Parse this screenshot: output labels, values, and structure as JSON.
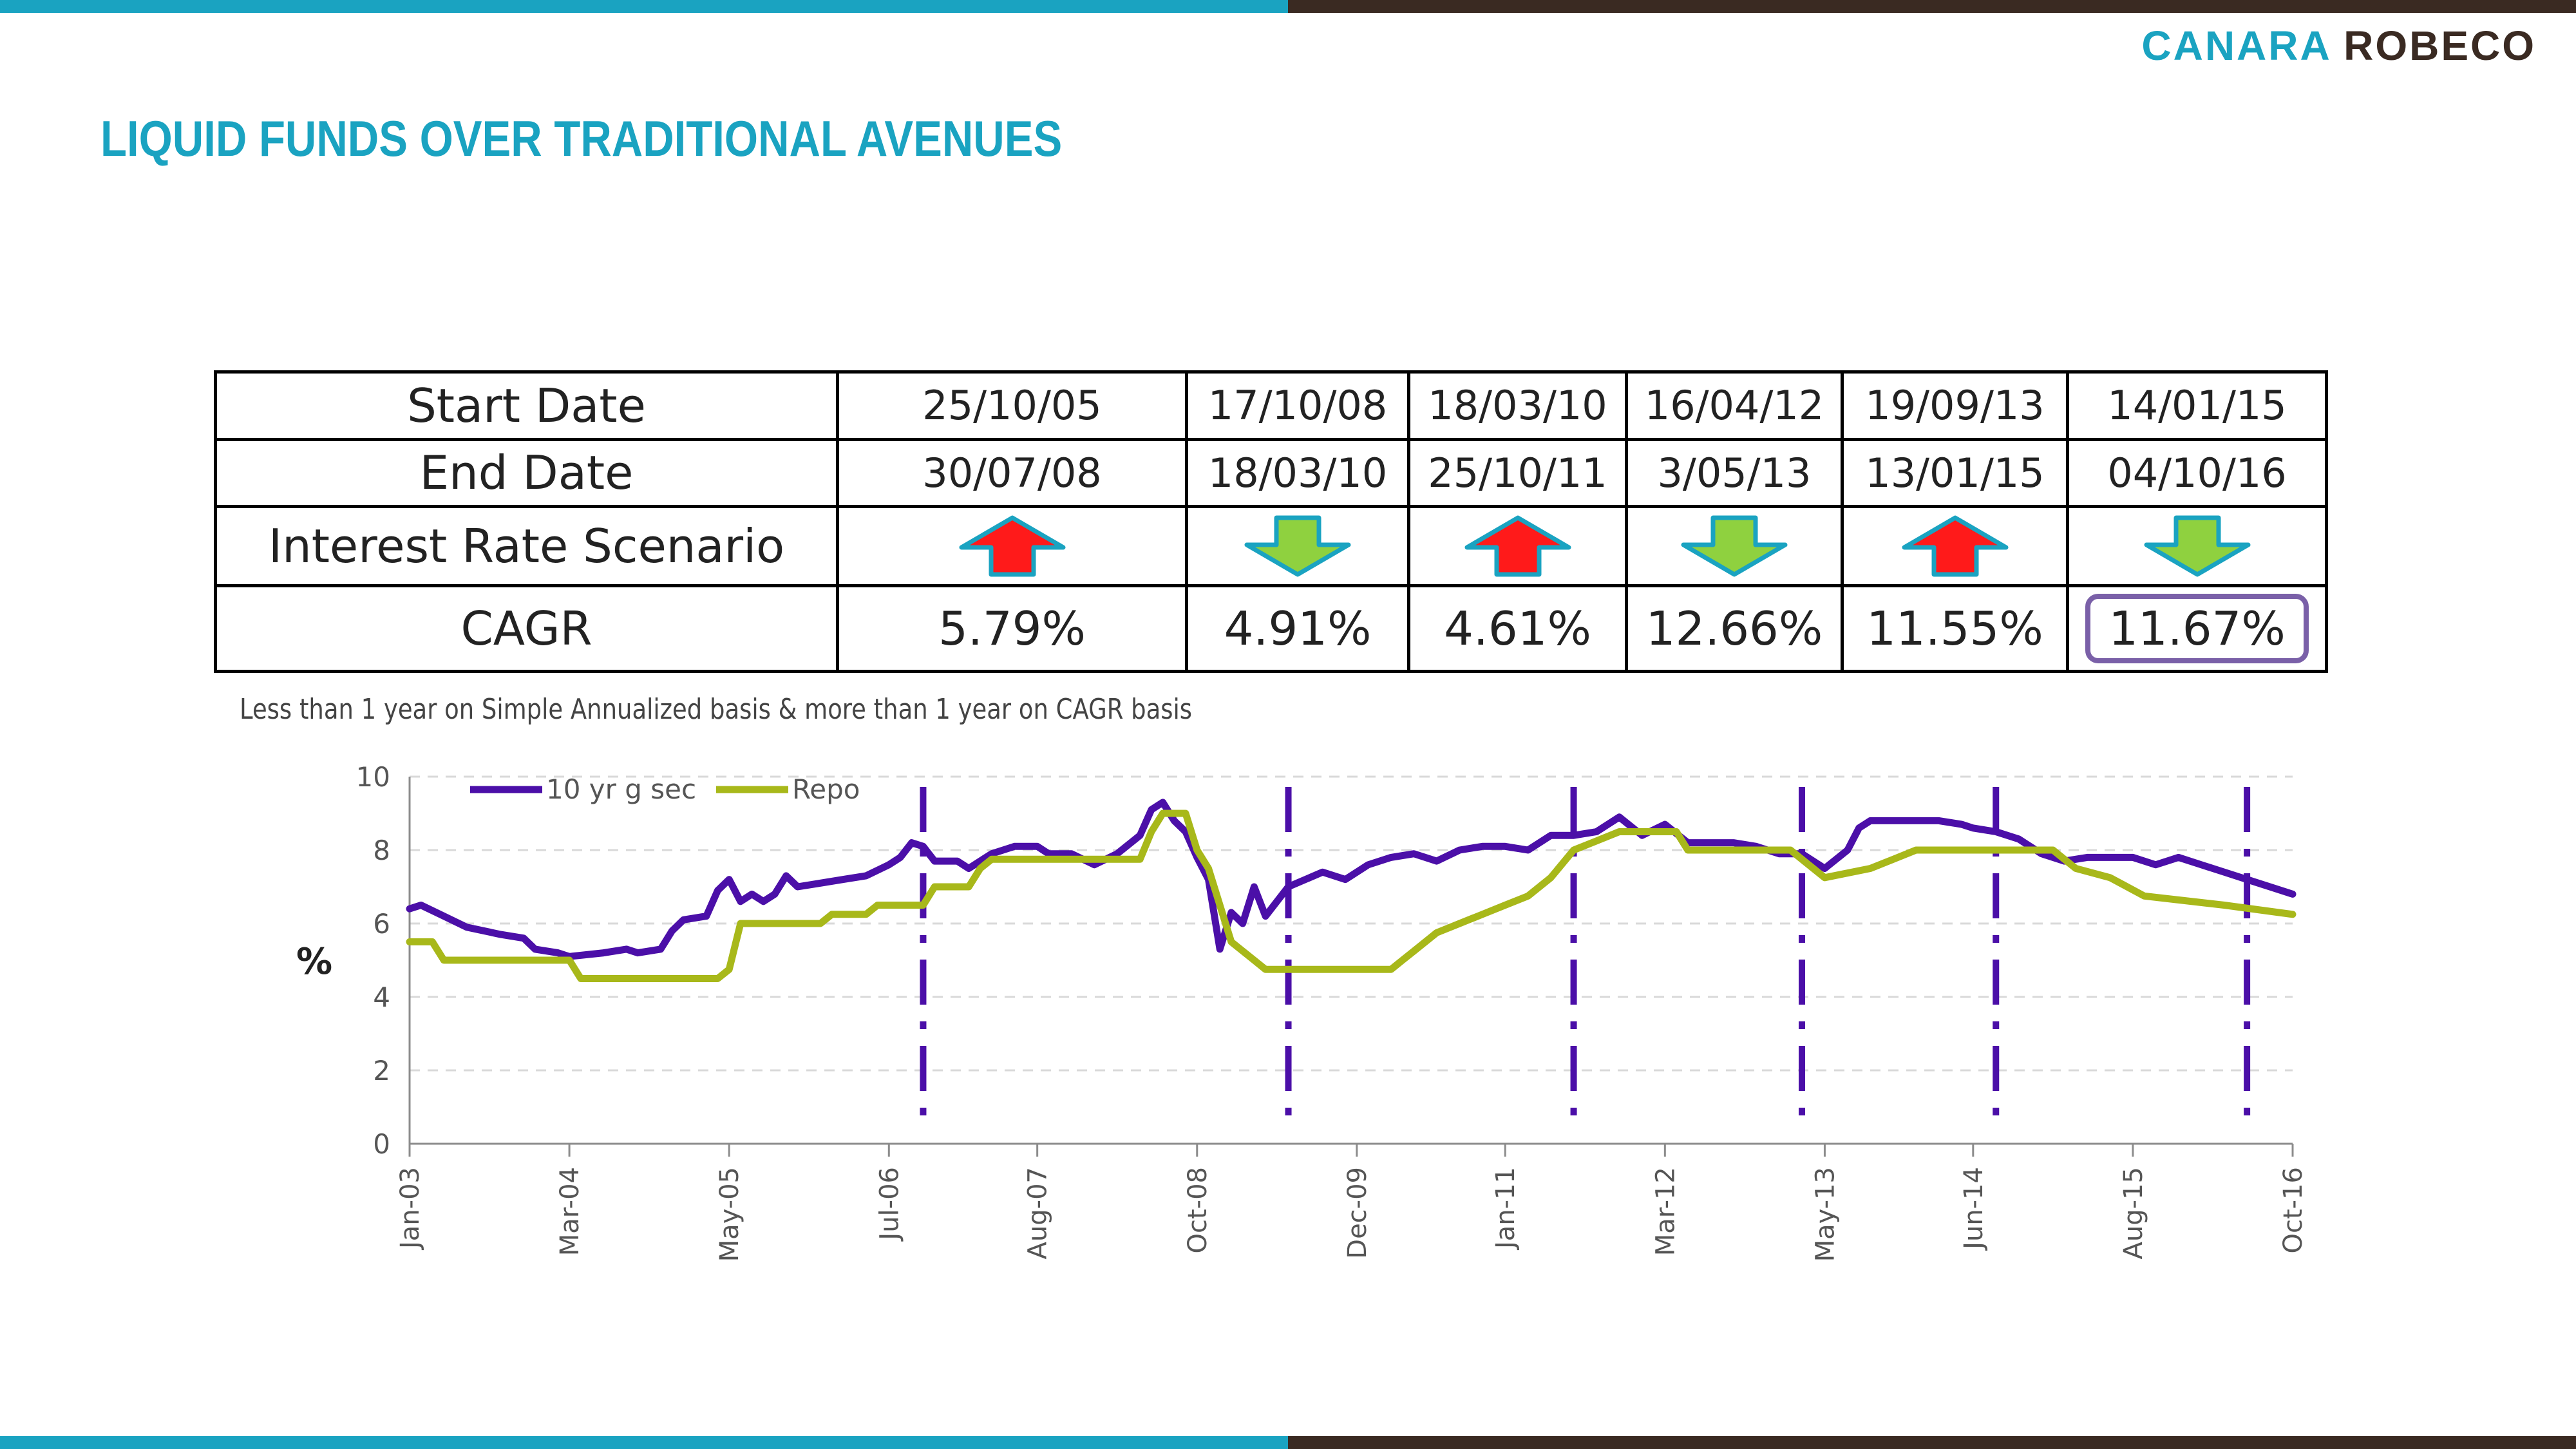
{
  "colors": {
    "accent": "#1aa3c1",
    "brand_brown": "#3a2a22",
    "series_gsec": "#4b0fa8",
    "series_repo": "#a8b81a",
    "up_arrow": "#ff1a1a",
    "down_arrow": "#8fd13f",
    "arrow_outline": "#1aa3c1"
  },
  "logo": {
    "part1": "CANARA",
    "part2": "ROBECO"
  },
  "page_title": "LIQUID FUNDS OVER TRADITIONAL AVENUES",
  "table": {
    "row_labels": {
      "start": "Start Date",
      "end": "End Date",
      "scenario": "Interest Rate Scenario",
      "cagr": "CAGR"
    },
    "periods": [
      {
        "start": "25/10/05",
        "end": "30/07/08",
        "direction": "up",
        "cagr": "5.79%",
        "highlighted": false
      },
      {
        "start": "17/10/08",
        "end": "18/03/10",
        "direction": "down",
        "cagr": "4.91%",
        "highlighted": false
      },
      {
        "start": "18/03/10",
        "end": "25/10/11",
        "direction": "up",
        "cagr": "4.61%",
        "highlighted": false
      },
      {
        "start": "16/04/12",
        "end": "3/05/13",
        "direction": "down",
        "cagr": "12.66%",
        "highlighted": false
      },
      {
        "start": "19/09/13",
        "end": "13/01/15",
        "direction": "up",
        "cagr": "11.55%",
        "highlighted": false
      },
      {
        "start": "14/01/15",
        "end": "04/10/16",
        "direction": "down",
        "cagr": "11.67%",
        "highlighted": true
      }
    ]
  },
  "note": "Less than 1 year on Simple Annualized basis & more than 1 year on CAGR basis",
  "chart_data": {
    "type": "line",
    "ylabel": "%",
    "ylim": [
      0,
      10
    ],
    "yticks": [
      0,
      2,
      4,
      6,
      8,
      10
    ],
    "xlim": [
      "2003-01",
      "2016-10"
    ],
    "xticks": [
      {
        "label": "Jan-03",
        "date": "2003-01"
      },
      {
        "label": "Mar-04",
        "date": "2004-03"
      },
      {
        "label": "May-05",
        "date": "2005-05"
      },
      {
        "label": "Jul-06",
        "date": "2006-07"
      },
      {
        "label": "Aug-07",
        "date": "2007-08"
      },
      {
        "label": "Oct-08",
        "date": "2008-10"
      },
      {
        "label": "Dec-09",
        "date": "2009-12"
      },
      {
        "label": "Jan-11",
        "date": "2011-01"
      },
      {
        "label": "Mar-12",
        "date": "2012-03"
      },
      {
        "label": "May-13",
        "date": "2013-05"
      },
      {
        "label": "Jun-14",
        "date": "2014-06"
      },
      {
        "label": "Aug-15",
        "date": "2015-08"
      },
      {
        "label": "Oct-16",
        "date": "2016-10"
      }
    ],
    "grid": "horizontal dashed",
    "legend": "top-left",
    "period_markers": [
      "2006-10",
      "2009-06",
      "2011-07",
      "2013-03",
      "2014-08",
      "2016-06"
    ],
    "series": [
      {
        "name": "10 yr g sec",
        "points": [
          [
            "2003-01",
            6.4
          ],
          [
            "2003-02",
            6.5
          ],
          [
            "2003-04",
            6.2
          ],
          [
            "2003-06",
            5.9
          ],
          [
            "2003-09",
            5.7
          ],
          [
            "2003-11",
            5.6
          ],
          [
            "2003-12",
            5.3
          ],
          [
            "2004-02",
            5.2
          ],
          [
            "2004-03",
            5.1
          ],
          [
            "2004-06",
            5.2
          ],
          [
            "2004-08",
            5.3
          ],
          [
            "2004-09",
            5.2
          ],
          [
            "2004-11",
            5.3
          ],
          [
            "2004-12",
            5.8
          ],
          [
            "2005-01",
            6.1
          ],
          [
            "2005-03",
            6.2
          ],
          [
            "2005-04",
            6.9
          ],
          [
            "2005-05",
            7.2
          ],
          [
            "2005-06",
            6.6
          ],
          [
            "2005-07",
            6.8
          ],
          [
            "2005-08",
            6.6
          ],
          [
            "2005-09",
            6.8
          ],
          [
            "2005-10",
            7.3
          ],
          [
            "2005-11",
            7.0
          ],
          [
            "2006-01",
            7.1
          ],
          [
            "2006-03",
            7.2
          ],
          [
            "2006-05",
            7.3
          ],
          [
            "2006-07",
            7.6
          ],
          [
            "2006-08",
            7.8
          ],
          [
            "2006-09",
            8.2
          ],
          [
            "2006-10",
            8.1
          ],
          [
            "2006-11",
            7.7
          ],
          [
            "2007-01",
            7.7
          ],
          [
            "2007-02",
            7.5
          ],
          [
            "2007-04",
            7.9
          ],
          [
            "2007-06",
            8.1
          ],
          [
            "2007-08",
            8.1
          ],
          [
            "2007-09",
            7.9
          ],
          [
            "2007-11",
            7.9
          ],
          [
            "2008-01",
            7.6
          ],
          [
            "2008-03",
            7.9
          ],
          [
            "2008-05",
            8.4
          ],
          [
            "2008-06",
            9.1
          ],
          [
            "2008-07",
            9.3
          ],
          [
            "2008-08",
            8.8
          ],
          [
            "2008-09",
            8.5
          ],
          [
            "2008-10",
            7.8
          ],
          [
            "2008-11",
            7.2
          ],
          [
            "2008-12",
            5.3
          ],
          [
            "2009-01",
            6.3
          ],
          [
            "2009-02",
            6.0
          ],
          [
            "2009-03",
            7.0
          ],
          [
            "2009-04",
            6.2
          ],
          [
            "2009-06",
            7.0
          ],
          [
            "2009-09",
            7.4
          ],
          [
            "2009-11",
            7.2
          ],
          [
            "2010-01",
            7.6
          ],
          [
            "2010-03",
            7.8
          ],
          [
            "2010-05",
            7.9
          ],
          [
            "2010-07",
            7.7
          ],
          [
            "2010-09",
            8.0
          ],
          [
            "2010-11",
            8.1
          ],
          [
            "2011-01",
            8.1
          ],
          [
            "2011-03",
            8.0
          ],
          [
            "2011-05",
            8.4
          ],
          [
            "2011-07",
            8.4
          ],
          [
            "2011-09",
            8.5
          ],
          [
            "2011-11",
            8.9
          ],
          [
            "2012-01",
            8.4
          ],
          [
            "2012-03",
            8.7
          ],
          [
            "2012-05",
            8.2
          ],
          [
            "2012-07",
            8.2
          ],
          [
            "2012-09",
            8.2
          ],
          [
            "2012-11",
            8.1
          ],
          [
            "2013-01",
            7.9
          ],
          [
            "2013-03",
            7.9
          ],
          [
            "2013-05",
            7.5
          ],
          [
            "2013-07",
            8.0
          ],
          [
            "2013-08",
            8.6
          ],
          [
            "2013-09",
            8.8
          ],
          [
            "2013-11",
            8.8
          ],
          [
            "2014-01",
            8.8
          ],
          [
            "2014-03",
            8.8
          ],
          [
            "2014-05",
            8.7
          ],
          [
            "2014-06",
            8.6
          ],
          [
            "2014-08",
            8.5
          ],
          [
            "2014-10",
            8.3
          ],
          [
            "2014-12",
            7.9
          ],
          [
            "2015-02",
            7.7
          ],
          [
            "2015-04",
            7.8
          ],
          [
            "2015-06",
            7.8
          ],
          [
            "2015-08",
            7.8
          ],
          [
            "2015-10",
            7.6
          ],
          [
            "2015-12",
            7.8
          ],
          [
            "2016-02",
            7.6
          ],
          [
            "2016-04",
            7.4
          ],
          [
            "2016-06",
            7.2
          ],
          [
            "2016-08",
            7.0
          ],
          [
            "2016-10",
            6.8
          ]
        ]
      },
      {
        "name": "Repo",
        "points": [
          [
            "2003-01",
            5.5
          ],
          [
            "2003-03",
            5.5
          ],
          [
            "2003-04",
            5.0
          ],
          [
            "2004-03",
            5.0
          ],
          [
            "2004-04",
            4.5
          ],
          [
            "2005-04",
            4.5
          ],
          [
            "2005-05",
            4.75
          ],
          [
            "2005-06",
            6.0
          ],
          [
            "2006-01",
            6.0
          ],
          [
            "2006-02",
            6.25
          ],
          [
            "2006-05",
            6.25
          ],
          [
            "2006-06",
            6.5
          ],
          [
            "2006-10",
            6.5
          ],
          [
            "2006-11",
            7.0
          ],
          [
            "2007-02",
            7.0
          ],
          [
            "2007-03",
            7.5
          ],
          [
            "2007-04",
            7.75
          ],
          [
            "2008-05",
            7.75
          ],
          [
            "2008-06",
            8.5
          ],
          [
            "2008-07",
            9.0
          ],
          [
            "2008-09",
            9.0
          ],
          [
            "2008-10",
            8.0
          ],
          [
            "2008-11",
            7.5
          ],
          [
            "2008-12",
            6.5
          ],
          [
            "2009-01",
            5.5
          ],
          [
            "2009-03",
            5.0
          ],
          [
            "2009-04",
            4.75
          ],
          [
            "2010-03",
            4.75
          ],
          [
            "2010-04",
            5.0
          ],
          [
            "2010-05",
            5.25
          ],
          [
            "2010-07",
            5.75
          ],
          [
            "2010-09",
            6.0
          ],
          [
            "2010-11",
            6.25
          ],
          [
            "2011-01",
            6.5
          ],
          [
            "2011-03",
            6.75
          ],
          [
            "2011-05",
            7.25
          ],
          [
            "2011-07",
            8.0
          ],
          [
            "2011-09",
            8.25
          ],
          [
            "2011-11",
            8.5
          ],
          [
            "2012-04",
            8.5
          ],
          [
            "2012-05",
            8.0
          ],
          [
            "2013-02",
            8.0
          ],
          [
            "2013-03",
            7.75
          ],
          [
            "2013-05",
            7.25
          ],
          [
            "2013-09",
            7.5
          ],
          [
            "2013-11",
            7.75
          ],
          [
            "2014-01",
            8.0
          ],
          [
            "2015-01",
            8.0
          ],
          [
            "2015-02",
            7.75
          ],
          [
            "2015-03",
            7.5
          ],
          [
            "2015-06",
            7.25
          ],
          [
            "2015-09",
            6.75
          ],
          [
            "2016-04",
            6.5
          ],
          [
            "2016-10",
            6.25
          ]
        ]
      }
    ]
  }
}
